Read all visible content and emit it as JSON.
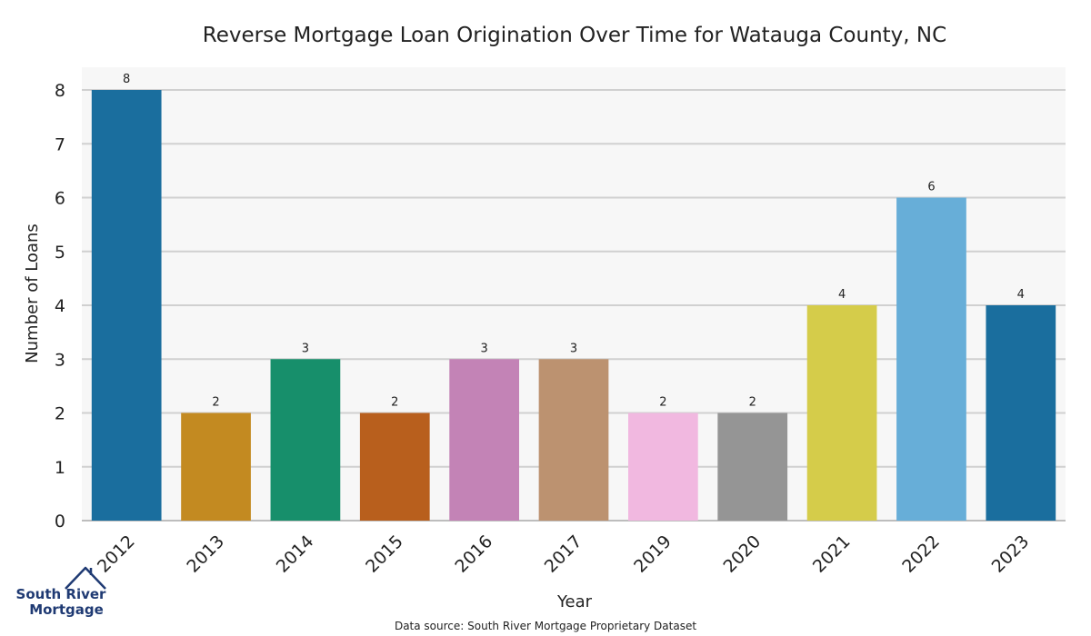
{
  "chart_data": {
    "type": "bar",
    "title": "Reverse Mortgage Loan Origination Over Time for Watauga County, NC",
    "xlabel": "Year",
    "ylabel": "Number of Loans",
    "categories": [
      "2012",
      "2013",
      "2014",
      "2015",
      "2016",
      "2017",
      "2019",
      "2020",
      "2021",
      "2022",
      "2023"
    ],
    "values": [
      8,
      2,
      3,
      2,
      3,
      3,
      2,
      2,
      4,
      6,
      4
    ],
    "colors": [
      "#1a6e9e",
      "#c38a21",
      "#178f6b",
      "#b85f1d",
      "#c383b6",
      "#bc9270",
      "#f1b8e0",
      "#959595",
      "#d5cc4a",
      "#67aed8",
      "#1a6e9e"
    ],
    "ylim": [
      0,
      8
    ],
    "yticks": [
      0,
      1,
      2,
      3,
      4,
      5,
      6,
      7,
      8
    ],
    "grid": true,
    "show_data_labels": true
  },
  "footer": {
    "source": "Data source: South River Mortgage Proprietary Dataset"
  },
  "logo": {
    "line1": "South River",
    "line2": "Mortgage",
    "color": "#1f3a73"
  }
}
